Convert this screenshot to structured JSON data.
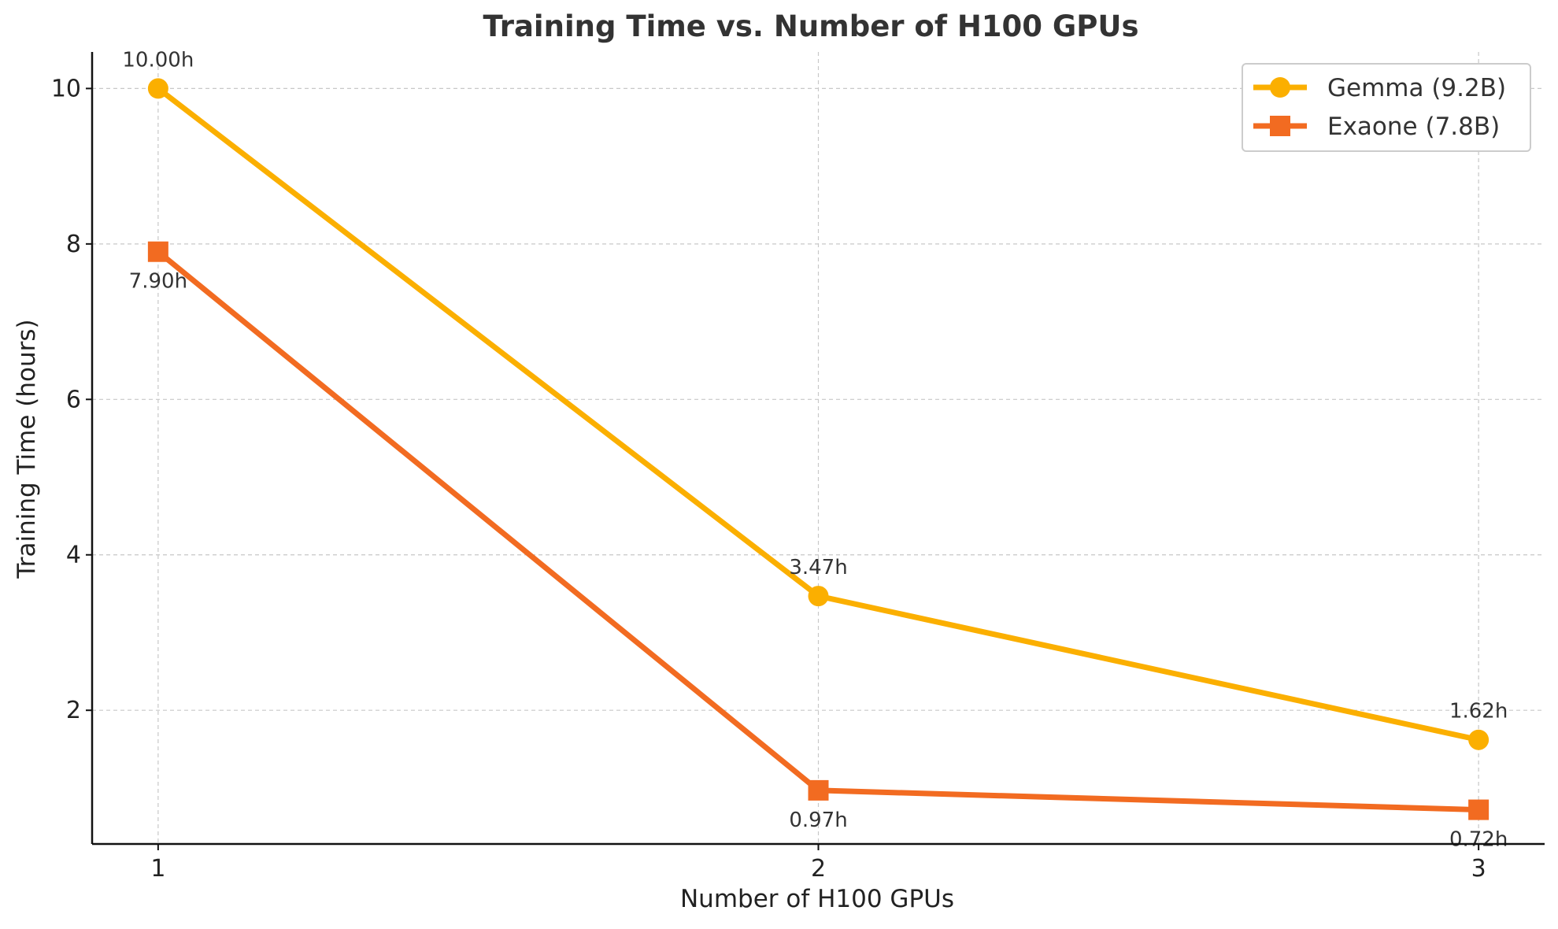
{
  "chart_data": {
    "type": "line",
    "title": "Training Time vs. Number of H100 GPUs",
    "xlabel": "Number of H100 GPUs",
    "ylabel": "Training Time (hours)",
    "x": [
      1,
      2,
      3
    ],
    "xticks": [
      "1",
      "2",
      "3"
    ],
    "yticks": [
      "2",
      "4",
      "6",
      "8",
      "10"
    ],
    "xlim": [
      0.9,
      3.1
    ],
    "ylim": [
      0.28,
      10.47
    ],
    "grid": true,
    "legend_position": "top-right",
    "series": [
      {
        "name": "Gemma (9.2B)",
        "color": "#FBAF00",
        "marker": "circle",
        "values": [
          10.0,
          3.47,
          1.62
        ],
        "labels": [
          "10.00h",
          "3.47h",
          "1.62h"
        ],
        "label_position": "above"
      },
      {
        "name": "Exaone (7.8B)",
        "color": "#F26B21",
        "marker": "square",
        "values": [
          7.9,
          0.97,
          0.72
        ],
        "labels": [
          "7.90h",
          "0.97h",
          "0.72h"
        ],
        "label_position": "below"
      }
    ]
  }
}
